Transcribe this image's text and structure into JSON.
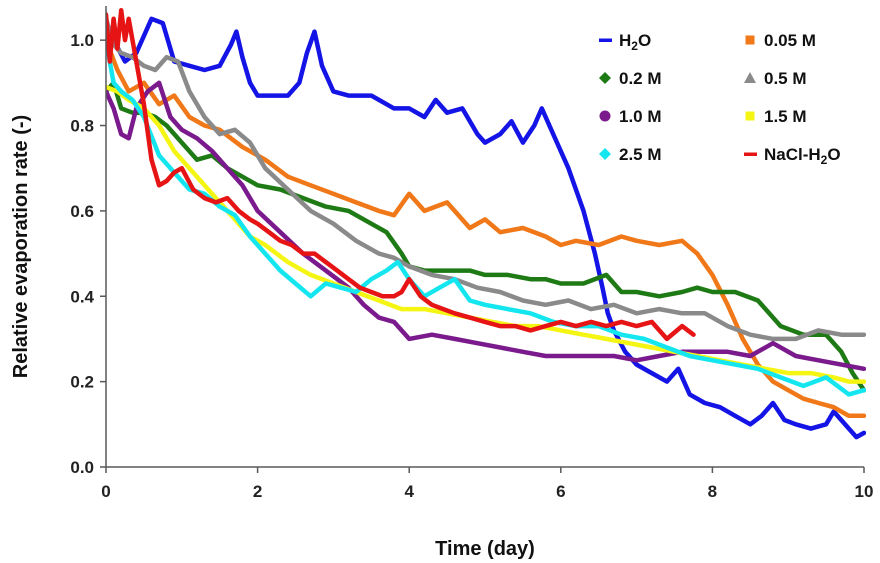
{
  "chart_data": {
    "type": "line",
    "title": "",
    "xlabel": "Time (day)",
    "ylabel": "Relative evaporation  rate (-)",
    "xlim": [
      0,
      10
    ],
    "ylim": [
      0,
      1.08
    ],
    "xticks": [
      0,
      2,
      4,
      6,
      8,
      10
    ],
    "yticks": [
      0.0,
      0.2,
      0.4,
      0.6,
      0.8,
      1.0
    ],
    "xtick_labels": [
      "0",
      "2",
      "4",
      "6",
      "8",
      "10"
    ],
    "ytick_labels": [
      "0.0",
      "0.2",
      "0.4",
      "0.6",
      "0.8",
      "1.0"
    ],
    "grid": false,
    "legend_position": "top-right",
    "series": [
      {
        "name": "H2O",
        "name_base": "H",
        "name_sub": "2",
        "name_tail": "O",
        "color": "#1414e6",
        "marker": "dash",
        "x": [
          0,
          0.1,
          0.25,
          0.4,
          0.6,
          0.75,
          0.9,
          1.1,
          1.3,
          1.5,
          1.65,
          1.72,
          1.8,
          1.9,
          2.0,
          2.2,
          2.4,
          2.55,
          2.65,
          2.75,
          2.85,
          3.0,
          3.2,
          3.5,
          3.8,
          4.0,
          4.2,
          4.35,
          4.5,
          4.7,
          4.9,
          5.0,
          5.2,
          5.35,
          5.5,
          5.65,
          5.75,
          5.9,
          6.1,
          6.3,
          6.45,
          6.55,
          6.62,
          6.7,
          6.85,
          7.0,
          7.2,
          7.4,
          7.55,
          7.7,
          7.9,
          8.1,
          8.3,
          8.5,
          8.65,
          8.8,
          8.95,
          9.1,
          9.3,
          9.5,
          9.6,
          9.75,
          9.9,
          10.0
        ],
        "y": [
          1.03,
          1.0,
          0.95,
          0.97,
          1.05,
          1.04,
          0.95,
          0.94,
          0.93,
          0.94,
          0.99,
          1.02,
          0.96,
          0.9,
          0.87,
          0.87,
          0.87,
          0.9,
          0.97,
          1.02,
          0.94,
          0.88,
          0.87,
          0.87,
          0.84,
          0.84,
          0.82,
          0.86,
          0.83,
          0.84,
          0.78,
          0.76,
          0.78,
          0.81,
          0.76,
          0.8,
          0.84,
          0.78,
          0.7,
          0.6,
          0.5,
          0.42,
          0.36,
          0.32,
          0.27,
          0.24,
          0.22,
          0.2,
          0.23,
          0.17,
          0.15,
          0.14,
          0.12,
          0.1,
          0.12,
          0.15,
          0.11,
          0.1,
          0.09,
          0.1,
          0.13,
          0.1,
          0.07,
          0.08
        ]
      },
      {
        "name": "0.05 M",
        "color": "#f07818",
        "marker": "square",
        "x": [
          0,
          0.15,
          0.3,
          0.5,
          0.7,
          0.9,
          1.1,
          1.3,
          1.5,
          1.8,
          2.1,
          2.4,
          2.7,
          3.0,
          3.3,
          3.6,
          3.8,
          4.0,
          4.2,
          4.5,
          4.8,
          5.0,
          5.2,
          5.5,
          5.8,
          6.0,
          6.2,
          6.5,
          6.8,
          7.0,
          7.3,
          7.6,
          7.8,
          8.0,
          8.2,
          8.4,
          8.6,
          8.8,
          9.0,
          9.2,
          9.4,
          9.6,
          9.8,
          10.0
        ],
        "y": [
          1.0,
          0.93,
          0.88,
          0.9,
          0.85,
          0.87,
          0.82,
          0.8,
          0.79,
          0.75,
          0.72,
          0.68,
          0.66,
          0.64,
          0.62,
          0.6,
          0.59,
          0.64,
          0.6,
          0.62,
          0.56,
          0.58,
          0.55,
          0.56,
          0.54,
          0.52,
          0.53,
          0.52,
          0.54,
          0.53,
          0.52,
          0.53,
          0.5,
          0.45,
          0.38,
          0.3,
          0.24,
          0.2,
          0.18,
          0.16,
          0.15,
          0.14,
          0.12,
          0.12
        ]
      },
      {
        "name": "0.2 M",
        "color": "#1e7a14",
        "marker": "diamond",
        "x": [
          0,
          0.1,
          0.2,
          0.35,
          0.5,
          0.65,
          0.8,
          1.0,
          1.2,
          1.4,
          1.6,
          1.8,
          2.0,
          2.3,
          2.6,
          2.9,
          3.2,
          3.5,
          3.7,
          3.9,
          4.0,
          4.2,
          4.5,
          4.8,
          5.0,
          5.3,
          5.6,
          5.8,
          6.0,
          6.3,
          6.6,
          6.8,
          7.0,
          7.3,
          7.6,
          7.8,
          8.0,
          8.3,
          8.6,
          8.9,
          9.2,
          9.5,
          9.7,
          9.85,
          10.0
        ],
        "y": [
          0.88,
          0.9,
          0.84,
          0.83,
          0.83,
          0.82,
          0.8,
          0.76,
          0.72,
          0.73,
          0.7,
          0.68,
          0.66,
          0.65,
          0.63,
          0.61,
          0.6,
          0.57,
          0.55,
          0.5,
          0.47,
          0.46,
          0.46,
          0.46,
          0.45,
          0.45,
          0.44,
          0.44,
          0.43,
          0.43,
          0.45,
          0.41,
          0.41,
          0.4,
          0.41,
          0.42,
          0.41,
          0.41,
          0.39,
          0.33,
          0.31,
          0.31,
          0.27,
          0.22,
          0.18
        ]
      },
      {
        "name": "0.5 M",
        "color": "#8a8a8a",
        "marker": "triangle",
        "x": [
          0,
          0.1,
          0.2,
          0.35,
          0.5,
          0.65,
          0.8,
          0.95,
          1.1,
          1.3,
          1.5,
          1.7,
          1.9,
          2.1,
          2.4,
          2.7,
          3.0,
          3.3,
          3.6,
          3.8,
          4.0,
          4.3,
          4.6,
          4.9,
          5.2,
          5.5,
          5.8,
          6.1,
          6.4,
          6.7,
          7.0,
          7.3,
          7.6,
          7.9,
          8.2,
          8.5,
          8.8,
          9.1,
          9.4,
          9.7,
          10.0
        ],
        "y": [
          1.05,
          0.99,
          0.97,
          0.96,
          0.94,
          0.93,
          0.96,
          0.95,
          0.88,
          0.82,
          0.78,
          0.79,
          0.76,
          0.7,
          0.65,
          0.6,
          0.57,
          0.53,
          0.5,
          0.49,
          0.47,
          0.45,
          0.44,
          0.42,
          0.41,
          0.39,
          0.38,
          0.39,
          0.37,
          0.38,
          0.36,
          0.37,
          0.36,
          0.36,
          0.33,
          0.31,
          0.3,
          0.3,
          0.32,
          0.31,
          0.31
        ]
      },
      {
        "name": "1.0 M",
        "color": "#7a1a8c",
        "marker": "circle",
        "x": [
          0,
          0.1,
          0.2,
          0.3,
          0.4,
          0.55,
          0.7,
          0.85,
          1.0,
          1.2,
          1.4,
          1.6,
          1.8,
          2.0,
          2.3,
          2.6,
          2.9,
          3.2,
          3.4,
          3.6,
          3.8,
          4.0,
          4.3,
          4.6,
          4.9,
          5.2,
          5.5,
          5.8,
          6.1,
          6.4,
          6.7,
          7.0,
          7.3,
          7.6,
          7.9,
          8.2,
          8.5,
          8.8,
          9.1,
          9.4,
          9.7,
          10.0
        ],
        "y": [
          0.88,
          0.84,
          0.78,
          0.77,
          0.84,
          0.88,
          0.9,
          0.82,
          0.79,
          0.77,
          0.74,
          0.7,
          0.66,
          0.6,
          0.55,
          0.5,
          0.46,
          0.42,
          0.38,
          0.35,
          0.34,
          0.3,
          0.31,
          0.3,
          0.29,
          0.28,
          0.27,
          0.26,
          0.26,
          0.26,
          0.26,
          0.25,
          0.26,
          0.27,
          0.27,
          0.27,
          0.26,
          0.29,
          0.26,
          0.25,
          0.24,
          0.23
        ]
      },
      {
        "name": "1.5 M",
        "color": "#f5f514",
        "marker": "square",
        "x": [
          0,
          0.15,
          0.3,
          0.5,
          0.7,
          0.9,
          1.1,
          1.3,
          1.5,
          1.7,
          1.9,
          2.1,
          2.4,
          2.7,
          3.0,
          3.3,
          3.6,
          3.9,
          4.2,
          4.5,
          4.8,
          5.1,
          5.4,
          5.7,
          6.0,
          6.3,
          6.6,
          6.9,
          7.2,
          7.5,
          7.8,
          8.1,
          8.4,
          8.7,
          9.0,
          9.3,
          9.6,
          9.8,
          10.0
        ],
        "y": [
          0.89,
          0.88,
          0.86,
          0.84,
          0.8,
          0.74,
          0.7,
          0.66,
          0.62,
          0.58,
          0.54,
          0.52,
          0.48,
          0.45,
          0.43,
          0.41,
          0.39,
          0.37,
          0.37,
          0.36,
          0.35,
          0.34,
          0.33,
          0.33,
          0.32,
          0.31,
          0.3,
          0.29,
          0.28,
          0.27,
          0.26,
          0.25,
          0.24,
          0.23,
          0.22,
          0.22,
          0.21,
          0.2,
          0.2
        ]
      },
      {
        "name": "2.5 M",
        "color": "#14e6f0",
        "marker": "diamond",
        "x": [
          0,
          0.1,
          0.2,
          0.35,
          0.5,
          0.7,
          0.9,
          1.1,
          1.3,
          1.5,
          1.7,
          1.9,
          2.1,
          2.3,
          2.5,
          2.7,
          2.9,
          3.1,
          3.3,
          3.5,
          3.7,
          3.85,
          4.0,
          4.2,
          4.4,
          4.6,
          4.8,
          5.0,
          5.3,
          5.6,
          5.9,
          6.2,
          6.5,
          6.8,
          7.1,
          7.4,
          7.7,
          8.0,
          8.3,
          8.6,
          8.9,
          9.2,
          9.5,
          9.8,
          10.0
        ],
        "y": [
          1.0,
          0.9,
          0.88,
          0.86,
          0.82,
          0.73,
          0.69,
          0.65,
          0.64,
          0.61,
          0.59,
          0.54,
          0.5,
          0.46,
          0.43,
          0.4,
          0.43,
          0.42,
          0.41,
          0.44,
          0.46,
          0.48,
          0.44,
          0.4,
          0.42,
          0.44,
          0.39,
          0.38,
          0.37,
          0.36,
          0.34,
          0.33,
          0.33,
          0.31,
          0.3,
          0.28,
          0.26,
          0.25,
          0.24,
          0.23,
          0.21,
          0.19,
          0.21,
          0.17,
          0.18
        ]
      },
      {
        "name": "NaCl-H2O",
        "name_base": "NaCl-H",
        "name_sub": "2",
        "name_tail": "O",
        "color": "#e61414",
        "marker": "dash",
        "x": [
          0,
          0.05,
          0.1,
          0.15,
          0.2,
          0.25,
          0.3,
          0.4,
          0.5,
          0.6,
          0.7,
          0.8,
          0.9,
          1.0,
          1.15,
          1.3,
          1.45,
          1.6,
          1.75,
          1.9,
          2.0,
          2.15,
          2.3,
          2.45,
          2.6,
          2.75,
          2.9,
          3.05,
          3.2,
          3.35,
          3.5,
          3.65,
          3.8,
          3.9,
          4.0,
          4.15,
          4.3,
          4.45,
          4.6,
          4.8,
          5.0,
          5.2,
          5.4,
          5.6,
          5.8,
          6.0,
          6.2,
          6.4,
          6.6,
          6.8,
          7.0,
          7.2,
          7.4,
          7.6,
          7.75
        ],
        "y": [
          1.06,
          0.95,
          1.05,
          0.98,
          1.07,
          1.0,
          1.05,
          0.95,
          0.85,
          0.72,
          0.66,
          0.67,
          0.69,
          0.7,
          0.65,
          0.63,
          0.62,
          0.63,
          0.6,
          0.58,
          0.57,
          0.55,
          0.53,
          0.52,
          0.5,
          0.5,
          0.48,
          0.46,
          0.44,
          0.42,
          0.41,
          0.4,
          0.4,
          0.41,
          0.44,
          0.4,
          0.38,
          0.37,
          0.36,
          0.35,
          0.34,
          0.33,
          0.33,
          0.32,
          0.33,
          0.34,
          0.33,
          0.34,
          0.33,
          0.34,
          0.33,
          0.34,
          0.3,
          0.33,
          0.31
        ]
      }
    ]
  }
}
